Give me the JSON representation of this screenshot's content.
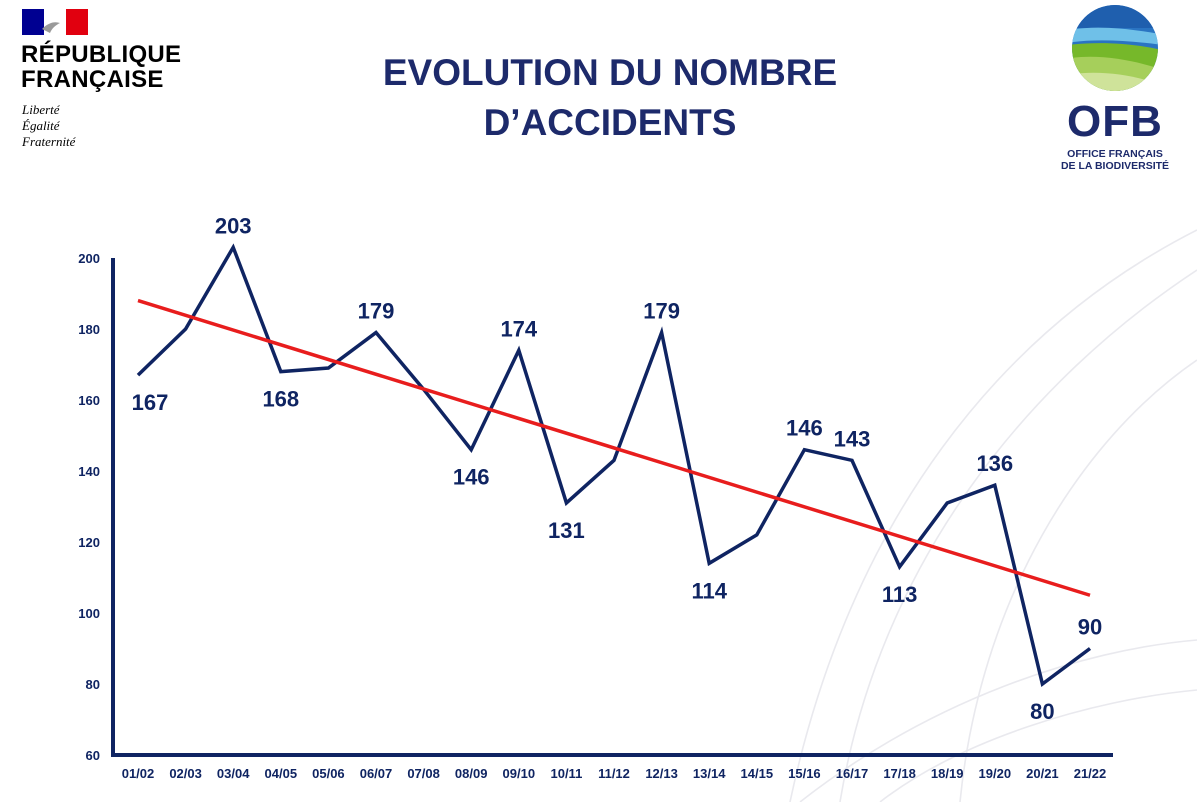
{
  "header": {
    "rf_logo": {
      "line1": "RÉPUBLIQUE",
      "line2": "FRANÇAISE",
      "motto": [
        "Liberté",
        "Égalité",
        "Fraternité"
      ]
    },
    "title_line1": "EVOLUTION DU NOMBRE",
    "title_line2": "D’ACCIDENTS",
    "ofb_logo": {
      "name": "OFB",
      "subtitle_line1": "OFFICE FRANÇAIS",
      "subtitle_line2": "DE LA BIODIVERSITÉ"
    }
  },
  "colors": {
    "series": "#0f2462",
    "trend": "#e81d1d",
    "title": "#1d2a6b",
    "axis": "#0f2462",
    "flag_blue": "#000091",
    "flag_red": "#e1000f"
  },
  "chart_data": {
    "type": "line",
    "title": "EVOLUTION DU NOMBRE D’ACCIDENTS",
    "xlabel": "",
    "ylabel": "",
    "categories": [
      "01/02",
      "02/03",
      "03/04",
      "04/05",
      "05/06",
      "06/07",
      "07/08",
      "08/09",
      "09/10",
      "10/11",
      "11/12",
      "12/13",
      "13/14",
      "14/15",
      "15/16",
      "16/17",
      "17/18",
      "18/19",
      "19/20",
      "20/21",
      "21/22"
    ],
    "series": [
      {
        "values": [
          167,
          180,
          203,
          168,
          169,
          179,
          163,
          146,
          174,
          131,
          143,
          179,
          114,
          122,
          146,
          143,
          113,
          131,
          136,
          80,
          90
        ]
      }
    ],
    "data_labels": [
      "167",
      "",
      "203",
      "168",
      "",
      "179",
      "",
      "146",
      "174",
      "131",
      "",
      "179",
      "114",
      "",
      "146",
      "143",
      "113",
      "",
      "136",
      "80",
      "90"
    ],
    "trendline": {
      "start": 188,
      "end": 105
    },
    "ylim": [
      60,
      200
    ],
    "yticks": [
      60,
      80,
      100,
      120,
      140,
      160,
      180,
      200
    ],
    "grid": false,
    "legend": "none"
  }
}
